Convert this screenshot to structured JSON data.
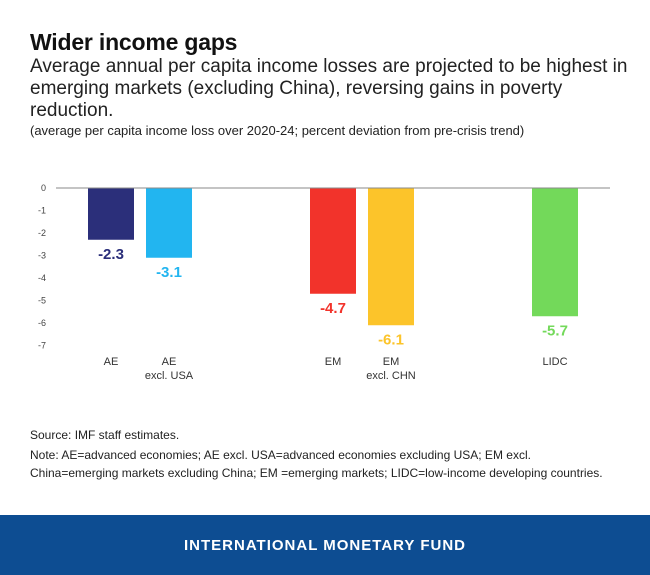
{
  "header": {
    "title": "Wider income gaps",
    "subtitle": "Average annual per capita income losses are projected to be highest in emerging markets (excluding China), reversing gains in poverty reduction.",
    "note": "(average per capita income loss over 2020-24; percent deviation from pre-crisis trend)"
  },
  "chart_data": {
    "type": "bar",
    "categories": [
      "AE",
      "AE excl. USA",
      "EM",
      "EM excl. CHN",
      "LIDC"
    ],
    "category_labels": [
      [
        "AE"
      ],
      [
        "AE",
        "excl. USA"
      ],
      [
        "EM"
      ],
      [
        "EM",
        "excl. CHN"
      ],
      [
        "LIDC"
      ]
    ],
    "values": [
      -2.3,
      -3.1,
      -4.7,
      -6.1,
      -5.7
    ],
    "data_labels": [
      "-2.3",
      "-3.1",
      "-4.7",
      "-6.1",
      "-5.7"
    ],
    "colors": [
      "#2b2f7a",
      "#22b5f0",
      "#f2332b",
      "#fcc42a",
      "#73d95a"
    ],
    "ylim": [
      -7,
      0
    ],
    "yticks": [
      "0",
      "-1",
      "-2",
      "-3",
      "-4",
      "-5",
      "-6",
      "-7"
    ],
    "grid": false
  },
  "footer": {
    "source": "Source: IMF staff estimates.",
    "note": "Note: AE=advanced economies; AE excl. USA=advanced economies excluding USA; EM excl. China=emerging markets excluding China; EM =emerging markets; LIDC=low-income developing countries.",
    "brand": "INTERNATIONAL MONETARY FUND"
  }
}
